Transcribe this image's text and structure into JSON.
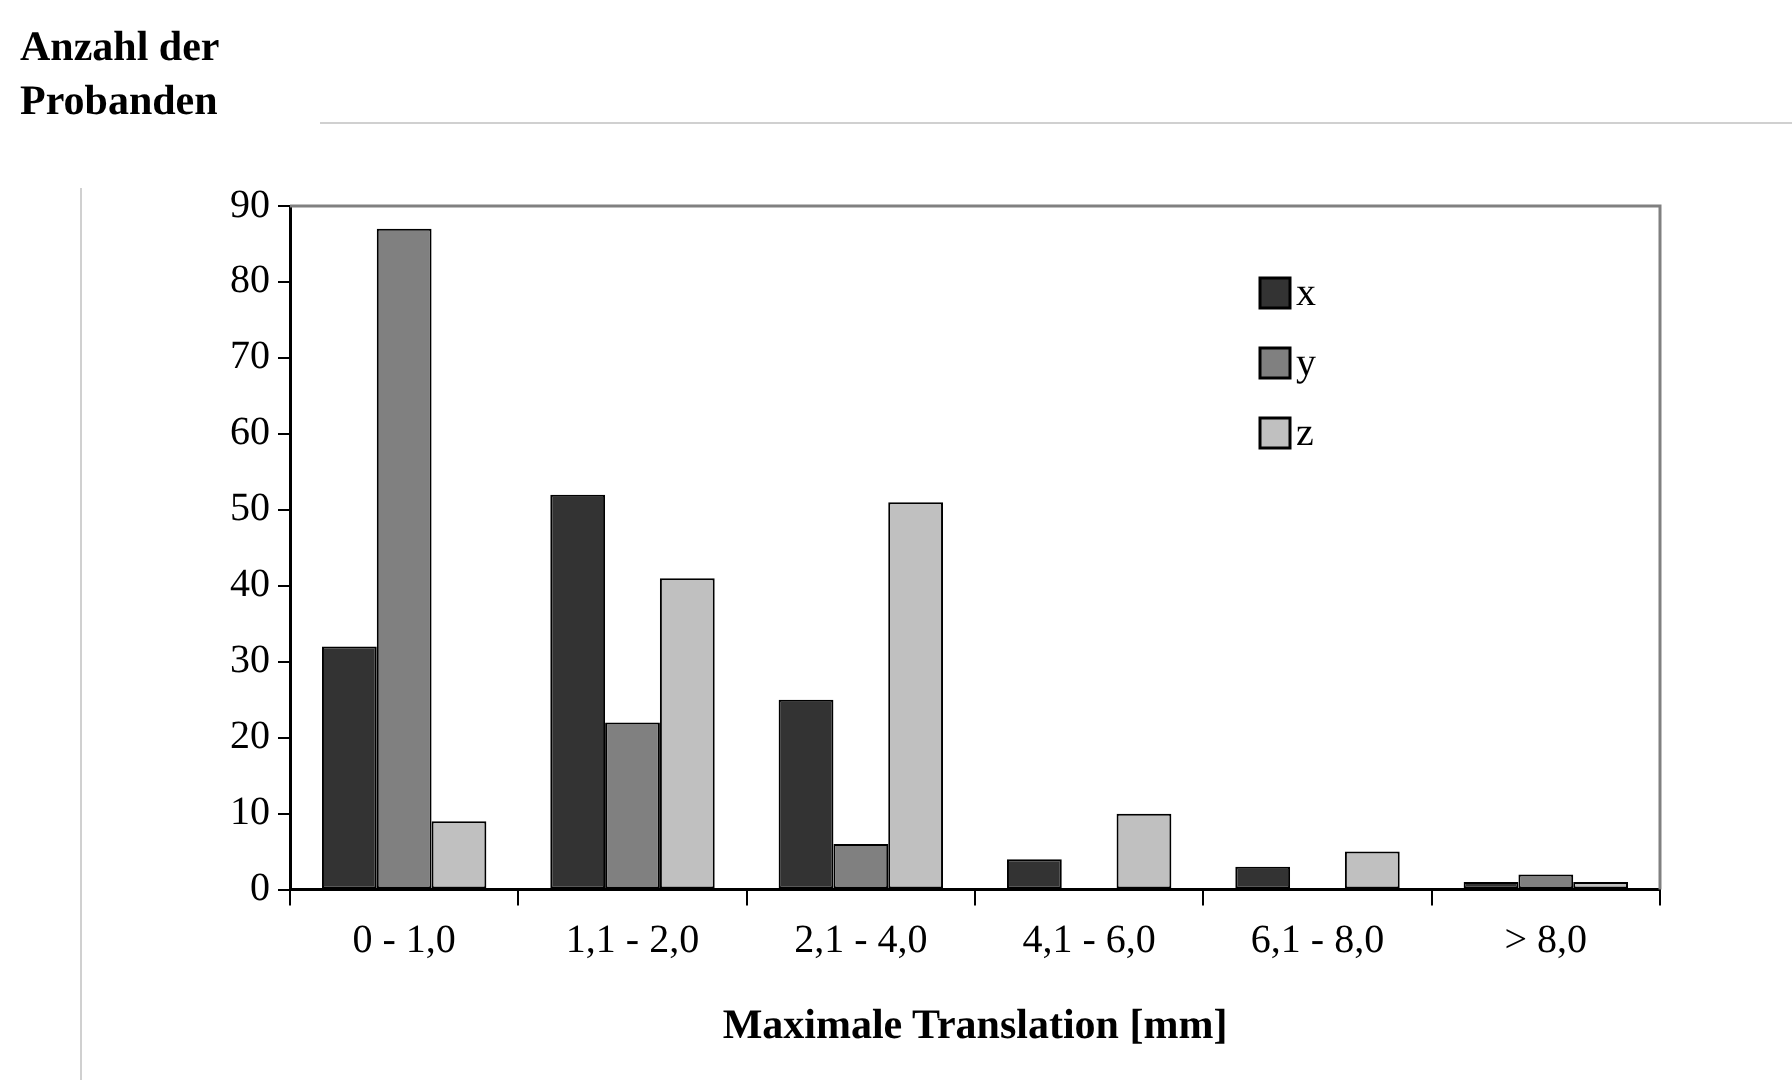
{
  "chart_data": {
    "type": "bar",
    "ylabel": "Anzahl der Probanden",
    "xlabel": "Maximale Translation [mm]",
    "categories": [
      "0 - 1,0",
      "1,1 - 2,0",
      "2,1 - 4,0",
      "4,1 - 6,0",
      "6,1 - 8,0",
      "> 8,0"
    ],
    "series": [
      {
        "name": "x",
        "color": "#333333",
        "values": [
          32,
          52,
          25,
          4,
          3,
          1
        ]
      },
      {
        "name": "y",
        "color": "#808080",
        "values": [
          87,
          22,
          6,
          0,
          0,
          2
        ]
      },
      {
        "name": "z",
        "color": "#c0c0c0",
        "values": [
          9,
          41,
          51,
          10,
          5,
          1
        ]
      }
    ],
    "ylim": [
      0,
      90
    ],
    "yticks": [
      0,
      10,
      20,
      30,
      40,
      50,
      60,
      70,
      80,
      90
    ],
    "grid": false,
    "legend": "top right"
  }
}
